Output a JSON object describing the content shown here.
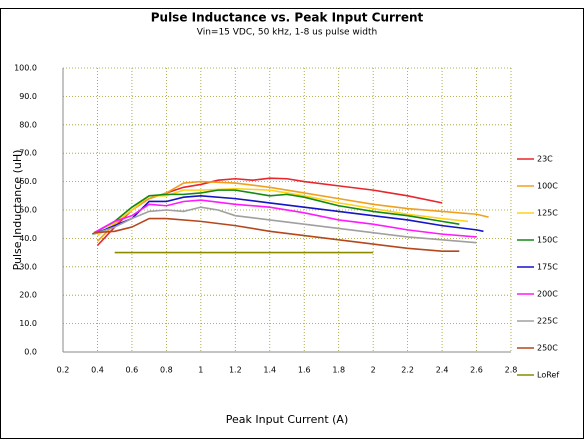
{
  "chart_data": {
    "type": "line",
    "title": "Pulse Inductance vs. Peak Input Current",
    "subtitle": "Vin=15 VDC, 50 kHz, 1-8 us pulse width",
    "x_label": "Peak Input Current (A)",
    "y_label": "Pulse Inductance (uH)",
    "xlim": [
      0.2,
      2.8
    ],
    "xticks": [
      0.2,
      0.4,
      0.6,
      0.8,
      1,
      1.2,
      1.4,
      1.6,
      1.8,
      2,
      2.2,
      2.4,
      2.6,
      2.8
    ],
    "ylim": [
      0,
      100
    ],
    "yticks": [
      {
        "value": 0,
        "label": "0.0"
      },
      {
        "value": 10,
        "label": "10.0"
      },
      {
        "value": 20,
        "label": "20.0"
      },
      {
        "value": 30,
        "label": "30.0"
      },
      {
        "value": 40,
        "label": "40.0"
      },
      {
        "value": 50,
        "label": "50.0"
      },
      {
        "value": 60,
        "label": "60.0"
      },
      {
        "value": 70,
        "label": "70.0"
      },
      {
        "value": 80,
        "label": "80.0"
      },
      {
        "value": 90,
        "label": "90.0"
      },
      {
        "value": 100,
        "label": "100.0"
      }
    ],
    "grid": true,
    "legend": "right",
    "series": [
      {
        "name": "23C",
        "color": "#e8262b",
        "x": [
          0.4,
          0.5,
          0.6,
          0.7,
          0.8,
          0.9,
          1.0,
          1.1,
          1.2,
          1.3,
          1.4,
          1.5,
          1.6,
          1.8,
          2.0,
          2.2,
          2.4
        ],
        "values": [
          37.5,
          44,
          50,
          54,
          56,
          58,
          59,
          60.5,
          61,
          60.5,
          61.2,
          61,
          60,
          58.5,
          57,
          55,
          52.5
        ]
      },
      {
        "name": "100C",
        "color": "#f0a020",
        "x": [
          0.4,
          0.5,
          0.6,
          0.7,
          0.8,
          0.9,
          1.0,
          1.2,
          1.4,
          1.6,
          1.8,
          2.0,
          2.2,
          2.4,
          2.6,
          2.67
        ],
        "values": [
          39,
          45,
          50,
          54,
          56,
          59.5,
          60,
          59.5,
          58,
          56,
          54,
          52,
          50.5,
          49.5,
          48.5,
          47.5
        ]
      },
      {
        "name": "125C",
        "color": "#ffd21a",
        "x": [
          0.4,
          0.6,
          0.7,
          0.8,
          0.9,
          1.0,
          1.2,
          1.4,
          1.5,
          1.6,
          1.8,
          2.0,
          2.2,
          2.4,
          2.55
        ],
        "values": [
          41,
          50,
          55,
          55,
          57,
          57,
          57.5,
          57,
          56,
          55,
          52.5,
          50.5,
          48.5,
          47,
          46
        ]
      },
      {
        "name": "150C",
        "color": "#138a13",
        "x": [
          0.37,
          0.5,
          0.6,
          0.7,
          0.8,
          0.9,
          1.0,
          1.1,
          1.2,
          1.3,
          1.4,
          1.5,
          1.6,
          1.8,
          2.0,
          2.2,
          2.4,
          2.5
        ],
        "values": [
          41.5,
          46,
          51,
          55,
          55.5,
          55.5,
          56,
          57,
          57,
          56,
          55,
          55.5,
          54.5,
          51.5,
          49.5,
          48,
          46,
          45
        ]
      },
      {
        "name": "175C",
        "color": "#1414c8",
        "x": [
          0.4,
          0.6,
          0.7,
          0.8,
          0.9,
          1.0,
          1.2,
          1.4,
          1.6,
          1.8,
          2.0,
          2.2,
          2.4,
          2.6,
          2.64
        ],
        "values": [
          42,
          47,
          53,
          53,
          54.5,
          55,
          54,
          52.5,
          51,
          49.5,
          48,
          46.5,
          44.5,
          43,
          42.5
        ]
      },
      {
        "name": "200C",
        "color": "#ff1aff",
        "x": [
          0.38,
          0.5,
          0.6,
          0.7,
          0.8,
          0.9,
          1.0,
          1.2,
          1.4,
          1.6,
          1.8,
          2.0,
          2.2,
          2.4,
          2.6
        ],
        "values": [
          42,
          46,
          48,
          52,
          51.5,
          53,
          53.5,
          52,
          51,
          49,
          46.5,
          45,
          43,
          41.5,
          40.5
        ]
      },
      {
        "name": "225C",
        "color": "#a0a0a0",
        "x": [
          0.38,
          0.5,
          0.6,
          0.7,
          0.8,
          0.9,
          1.0,
          1.1,
          1.2,
          1.4,
          1.6,
          1.8,
          2.0,
          2.2,
          2.4,
          2.6
        ],
        "values": [
          41.5,
          44,
          47,
          49.5,
          50,
          49.5,
          51,
          50,
          48,
          46.5,
          45,
          43.5,
          42,
          40.5,
          39.5,
          38.5
        ]
      },
      {
        "name": "250C",
        "color": "#b5471d",
        "x": [
          0.38,
          0.5,
          0.6,
          0.7,
          0.8,
          1.0,
          1.2,
          1.4,
          1.6,
          1.8,
          2.0,
          2.2,
          2.4,
          2.5
        ],
        "values": [
          42,
          42.5,
          44,
          47,
          47,
          46,
          44.5,
          42.5,
          41,
          39.5,
          38,
          36.5,
          35.5,
          35.5
        ]
      },
      {
        "name": "LoRef",
        "color": "#8b8b00",
        "x": [
          0.5,
          2.0
        ],
        "values": [
          35,
          35
        ]
      }
    ]
  }
}
